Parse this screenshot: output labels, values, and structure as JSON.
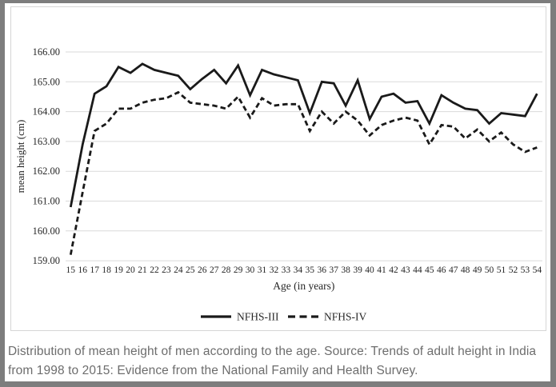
{
  "chart": {
    "y_ticks": [
      "166.00",
      "165.00",
      "164.00",
      "163.00",
      "162.00",
      "161.00",
      "160.00",
      "159.00"
    ],
    "y_axis_title": "mean height (cm)",
    "x_axis_title": "Age (in years)"
  },
  "chart_data": {
    "type": "line",
    "title": "",
    "xlabel": "Age (in years)",
    "ylabel": "mean height (cm)",
    "ylim": [
      159,
      166
    ],
    "grid": "horizontal-only",
    "legend_position": "bottom-center",
    "x": [
      15,
      16,
      17,
      18,
      19,
      20,
      21,
      22,
      23,
      24,
      25,
      26,
      27,
      28,
      29,
      30,
      31,
      32,
      33,
      34,
      35,
      36,
      37,
      38,
      39,
      40,
      41,
      42,
      43,
      44,
      45,
      46,
      47,
      48,
      49,
      50,
      51,
      52,
      53,
      54
    ],
    "series": [
      {
        "name": "NFHS-III",
        "style": "solid",
        "values": [
          160.8,
          162.9,
          164.6,
          164.85,
          165.5,
          165.3,
          165.6,
          165.4,
          165.3,
          165.2,
          164.75,
          165.1,
          165.4,
          164.95,
          165.55,
          164.55,
          165.4,
          165.25,
          165.15,
          165.05,
          163.95,
          165.0,
          164.95,
          164.2,
          165.05,
          163.75,
          164.5,
          164.6,
          164.3,
          164.35,
          163.6,
          164.55,
          164.3,
          164.1,
          164.05,
          163.6,
          163.95,
          163.9,
          163.85,
          164.6
        ]
      },
      {
        "name": "NFHS-IV",
        "style": "dashed",
        "values": [
          159.2,
          161.3,
          163.35,
          163.6,
          164.1,
          164.1,
          164.3,
          164.4,
          164.45,
          164.65,
          164.3,
          164.25,
          164.2,
          164.1,
          164.5,
          163.8,
          164.45,
          164.2,
          164.25,
          164.25,
          163.35,
          164.0,
          163.6,
          164.0,
          163.7,
          163.2,
          163.55,
          163.7,
          163.8,
          163.7,
          162.9,
          163.55,
          163.5,
          163.1,
          163.4,
          163.0,
          163.3,
          162.9,
          162.65,
          162.8
        ]
      }
    ]
  },
  "legend": {
    "items": [
      {
        "label": "NFHS-III",
        "line": "solid"
      },
      {
        "label": "NFHS-IV",
        "line": "dashed"
      }
    ]
  },
  "caption": {
    "text": "Distribution of mean height of men according to the age. Source: Trends of adult height in India from 1998 to 2015: Evidence from the National Family and Health Survey."
  },
  "colors": {
    "line": "#1a1a1a",
    "grid": "#dadada",
    "caption_text": "#6d6d6d",
    "outer_frame": "#7d7d7d",
    "panel_border": "#d6d6d6"
  }
}
